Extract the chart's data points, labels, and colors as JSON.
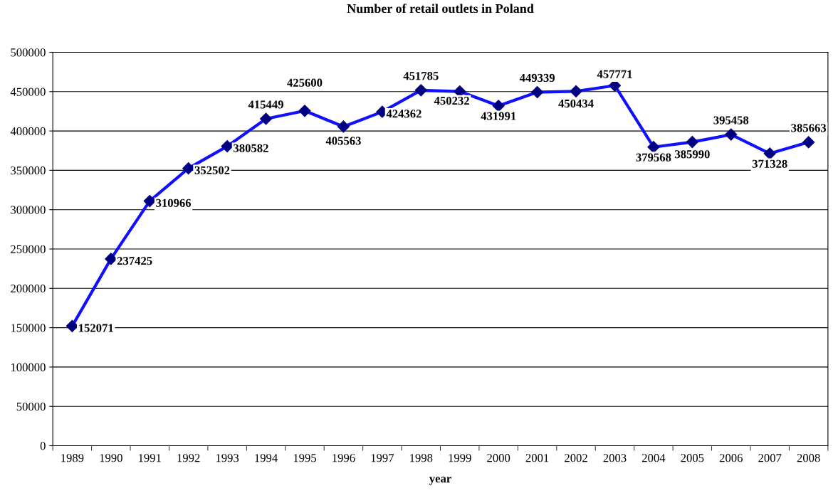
{
  "chart_data": {
    "type": "line",
    "title": "Number of retail outlets in Poland",
    "xlabel": "year",
    "categories": [
      "1989",
      "1990",
      "1991",
      "1992",
      "1993",
      "1994",
      "1995",
      "1996",
      "1997",
      "1998",
      "1999",
      "2000",
      "2001",
      "2002",
      "2003",
      "2004",
      "2005",
      "2006",
      "2007",
      "2008"
    ],
    "series": [
      {
        "color": "#1010ff",
        "values": [
          152071,
          237425,
          310966,
          352502,
          380582,
          415449,
          425600,
          405563,
          424362,
          451785,
          450232,
          431991,
          449339,
          450434,
          457771,
          379568,
          385990,
          395458,
          371328,
          385663
        ]
      }
    ],
    "ylim": [
      0,
      500000
    ],
    "yticks": [
      0,
      50000,
      100000,
      150000,
      200000,
      250000,
      300000,
      350000,
      400000,
      450000,
      500000
    ],
    "grid": "y",
    "legend": false,
    "marker": "diamond",
    "line_style": "solid",
    "data_labels": true
  }
}
